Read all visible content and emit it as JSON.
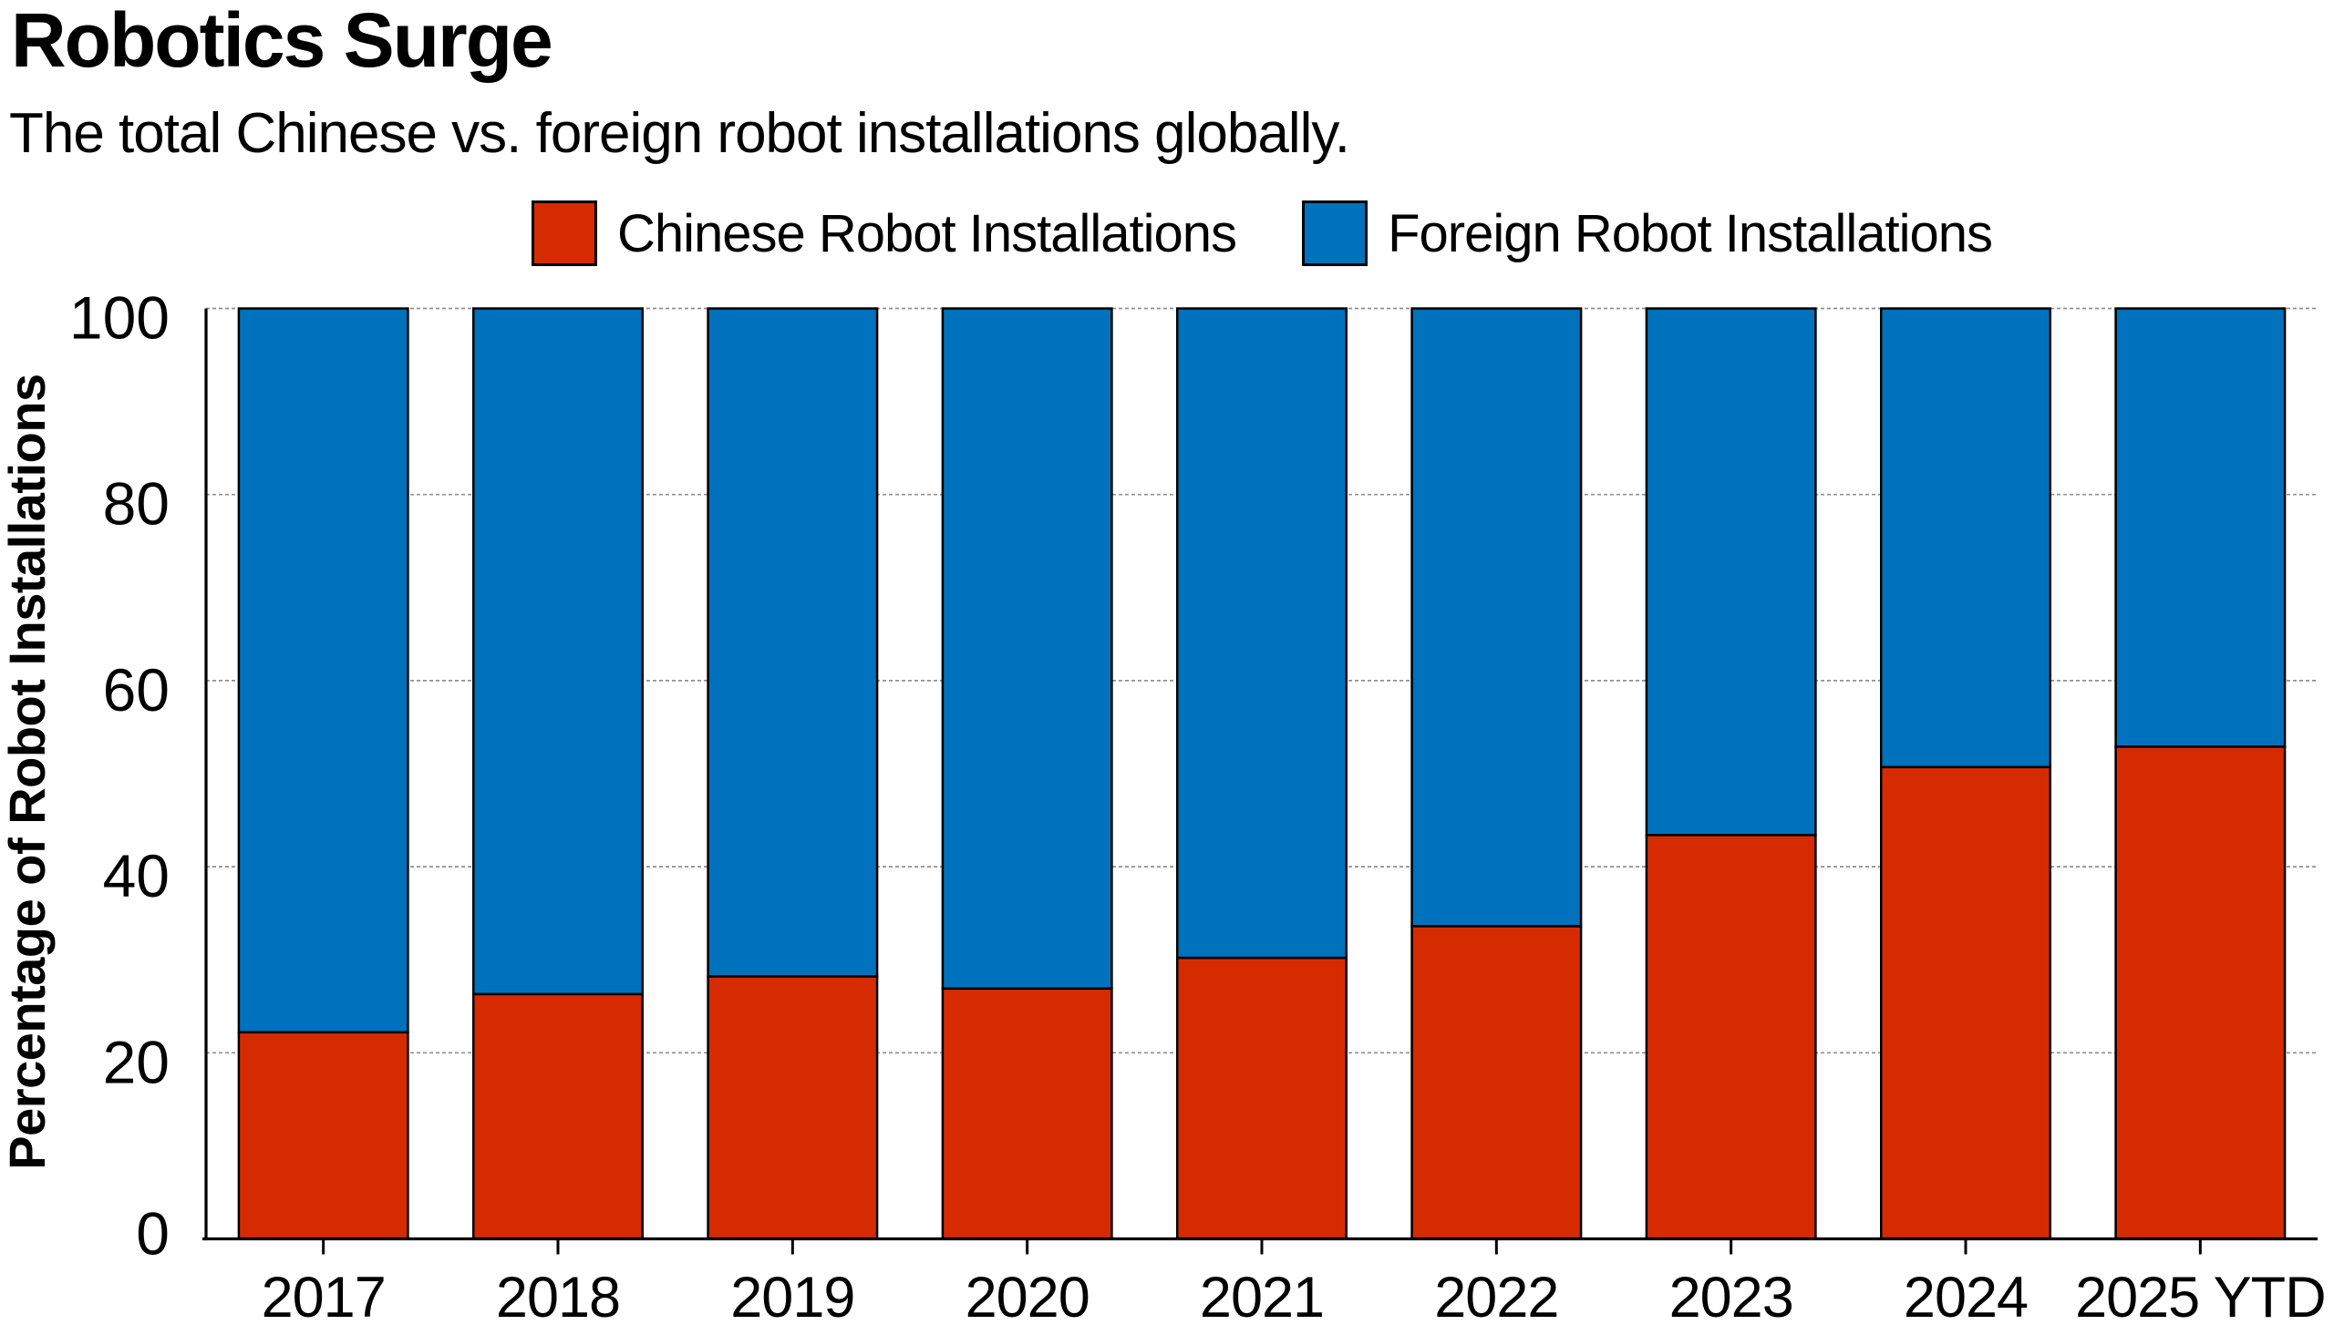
{
  "chart_data": {
    "type": "bar",
    "stacked": true,
    "title": "Robotics Surge",
    "subtitle": "The total Chinese vs. foreign robot installations globally.",
    "xlabel": "",
    "ylabel": "Percentage of Robot Installations",
    "categories": [
      "2017",
      "2018",
      "2019",
      "2020",
      "2021",
      "2022",
      "2023",
      "2024",
      "2025 YTD"
    ],
    "series": [
      {
        "name": "Chinese Robot Installations",
        "color": "#d62b00",
        "values": [
          22.2,
          26.3,
          28.2,
          26.9,
          30.2,
          33.6,
          43.4,
          50.7,
          52.9
        ]
      },
      {
        "name": "Foreign Robot Installations",
        "color": "#0072bd",
        "values": [
          77.8,
          73.7,
          71.8,
          73.1,
          69.8,
          66.4,
          56.6,
          49.3,
          47.1
        ]
      }
    ],
    "ylim": [
      0,
      100
    ],
    "yticks": [
      0,
      20,
      40,
      60,
      80,
      100
    ],
    "grid": "horizontal gray dashed lines behind bars",
    "legend_position": "top center",
    "axis_color": "#000000",
    "gridline_color": "#909090",
    "bar_outline_color": "#000000",
    "background_color": "#ffffff",
    "text_color": "#000000"
  }
}
